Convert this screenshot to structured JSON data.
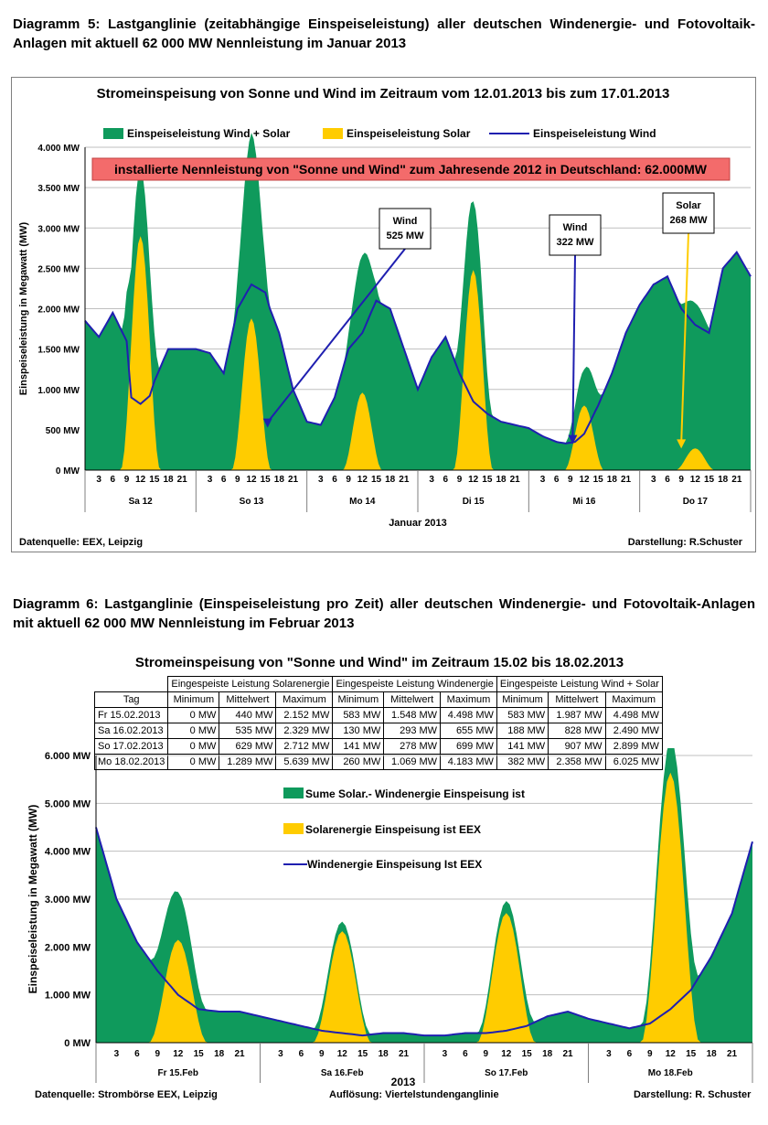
{
  "headings": {
    "d5": "Diagramm 5: Lastganglinie (zeitabhängige Einspeiseleistung) aller deutschen Windenergie- und Fotovoltaik-Anlagen mit aktuell 62 000 MW Nennleistung im Januar 2013",
    "d6": "Diagramm 6: Lastganglinie (Einspeiseleistung pro Zeit) aller deutschen Windenergie- und Fotovoltaik-Anlagen mit aktuell 62 000 MW Nennleistung im Februar 2013"
  },
  "colors": {
    "total": "#0f9a5c",
    "solar": "#ffcc00",
    "wind": "#1f1fb0",
    "banner": "#f36b6b"
  },
  "chart_data": [
    {
      "type": "area",
      "title": "Stromeinspeisung von Sonne und Wind im Zeitraum vom 12.01.2013 bis zum 17.01.2013",
      "ylabel": "Einspeiseleistung in Megawatt (MW)",
      "xlabel": "Januar 2013",
      "ylim": [
        0,
        4000
      ],
      "yticks": [
        "0 MW",
        "500 MW",
        "1.000 MW",
        "1.500 MW",
        "2.000 MW",
        "2.500 MW",
        "3.000 MW",
        "3.500 MW",
        "4.000 MW"
      ],
      "x_hour_ticks": [
        "3",
        "6",
        "9",
        "12",
        "15",
        "18",
        "21"
      ],
      "days": [
        "Sa 12",
        "So 13",
        "Mo 14",
        "Di 15",
        "Mi 16",
        "Do 17"
      ],
      "grid": true,
      "legend_position": "top",
      "banner": "installierte Nennleistung von \"Sonne und Wind\" zum Jahresende 2012 in Deutschland:  62.000MW",
      "annotations": [
        {
          "line1": "Wind",
          "line2": "525 MW",
          "x_hour": 39.5,
          "y": 525
        },
        {
          "line1": "Wind",
          "line2": "322 MW",
          "x_hour": 105.5,
          "y": 322
        },
        {
          "line1": "Solar",
          "line2": "268 MW",
          "x_hour": 129,
          "y": 268
        }
      ],
      "source": "Datenquelle: EEX, Leipzig",
      "credit": "Darstellung: R.Schuster",
      "series": [
        {
          "name": "Einspeiseleistung Wind + Solar",
          "kind": "total"
        },
        {
          "name": "Einspeiseleistung Solar",
          "kind": "solar",
          "daily_peak_hour": [
            12,
            12,
            12,
            12,
            12,
            12
          ],
          "daily_peak": [
            2900,
            1880,
            960,
            2480,
            800,
            270
          ]
        },
        {
          "name": "Einspeiseleistung Wind",
          "kind": "wind",
          "hours": [
            0,
            3,
            6,
            9,
            10,
            12,
            14,
            15,
            18,
            21,
            24,
            27,
            30,
            33,
            36,
            39,
            40,
            42,
            45,
            48,
            51,
            54,
            57,
            60,
            63,
            66,
            69,
            72,
            75,
            78,
            81,
            84,
            87,
            90,
            93,
            96,
            99,
            102,
            104,
            106,
            108,
            111,
            114,
            117,
            120,
            123,
            126,
            129,
            132,
            135,
            138,
            141,
            144
          ],
          "values": [
            1850,
            1650,
            1950,
            1600,
            900,
            820,
            920,
            1100,
            1500,
            1500,
            1500,
            1450,
            1200,
            2000,
            2300,
            2200,
            2000,
            1700,
            1000,
            600,
            560,
            900,
            1500,
            1700,
            2100,
            2000,
            1500,
            1000,
            1400,
            1650,
            1200,
            850,
            700,
            600,
            560,
            520,
            420,
            350,
            330,
            350,
            450,
            800,
            1200,
            1700,
            2050,
            2300,
            2400,
            2000,
            1800,
            1700,
            2500,
            2700,
            2400
          ]
        }
      ]
    },
    {
      "type": "area",
      "title": "Stromeinspeisung von \"Sonne und Wind\" im Zeitraum 15.02 bis 18.02.2013",
      "ylabel": "Einspeiseleistung in Megawatt (MW)",
      "xlabel": "2013",
      "ylim": [
        0,
        6000
      ],
      "yticks": [
        "0 MW",
        "1.000 MW",
        "2.000 MW",
        "3.000 MW",
        "4.000 MW",
        "5.000 MW",
        "6.000 MW"
      ],
      "x_hour_ticks": [
        "3",
        "6",
        "9",
        "12",
        "15",
        "18",
        "21"
      ],
      "days": [
        "Fr 15.Feb",
        "Sa 16.Feb",
        "So 17.Feb",
        "Mo 18.Feb"
      ],
      "grid": true,
      "legend_position": "right",
      "source": "Datenquelle:  Strombörse EEX, Leipzig",
      "resolution": "Auflösung: Viertelstundenganglinie",
      "credit": "Darstellung: R. Schuster",
      "series": [
        {
          "name": "Sume Solar.- Windenergie Einspeisung ist",
          "kind": "total"
        },
        {
          "name": "Solarenergie Einspeisung ist EEX",
          "kind": "solar",
          "daily_peak_hour": [
            12,
            12,
            12,
            12
          ],
          "daily_peak": [
            2150,
            2330,
            2710,
            5640
          ]
        },
        {
          "name": "Windenergie Einspeisung Ist EEX",
          "kind": "wind",
          "hours": [
            0,
            3,
            6,
            9,
            12,
            15,
            18,
            21,
            24,
            27,
            30,
            33,
            36,
            39,
            42,
            45,
            48,
            51,
            54,
            57,
            60,
            63,
            66,
            69,
            72,
            75,
            78,
            81,
            84,
            87,
            90,
            93,
            96
          ],
          "values": [
            4500,
            3000,
            2100,
            1500,
            1000,
            700,
            650,
            650,
            550,
            450,
            350,
            250,
            200,
            150,
            200,
            200,
            150,
            150,
            200,
            200,
            250,
            350,
            550,
            650,
            500,
            400,
            300,
            400,
            700,
            1100,
            1800,
            2700,
            4200
          ]
        }
      ],
      "table": {
        "group_headers": [
          "Eingespeiste Leistung Solarenergie",
          "Eingespeiste Leistung Windenergie",
          "Eingespeiste Leistung Wind  + Solar"
        ],
        "columns": [
          "Tag",
          "Minimum",
          "Mittelwert",
          "Maximum",
          "Minimum",
          "Mittelwert",
          "Maximum",
          "Minimum",
          "Mittelwert",
          "Maximum"
        ],
        "rows": [
          [
            "Fr 15.02.2013",
            "0 MW",
            "440 MW",
            "2.152 MW",
            "583 MW",
            "1.548 MW",
            "4.498 MW",
            "583 MW",
            "1.987 MW",
            "4.498 MW"
          ],
          [
            "Sa 16.02.2013",
            "0 MW",
            "535 MW",
            "2.329 MW",
            "130 MW",
            "293 MW",
            "655 MW",
            "188 MW",
            "828 MW",
            "2.490 MW"
          ],
          [
            "So 17.02.2013",
            "0 MW",
            "629 MW",
            "2.712 MW",
            "141 MW",
            "278 MW",
            "699 MW",
            "141 MW",
            "907 MW",
            "2.899 MW"
          ],
          [
            "Mo 18.02.2013",
            "0 MW",
            "1.289 MW",
            "5.639 MW",
            "260 MW",
            "1.069 MW",
            "4.183 MW",
            "382 MW",
            "2.358 MW",
            "6.025 MW"
          ]
        ]
      }
    }
  ]
}
